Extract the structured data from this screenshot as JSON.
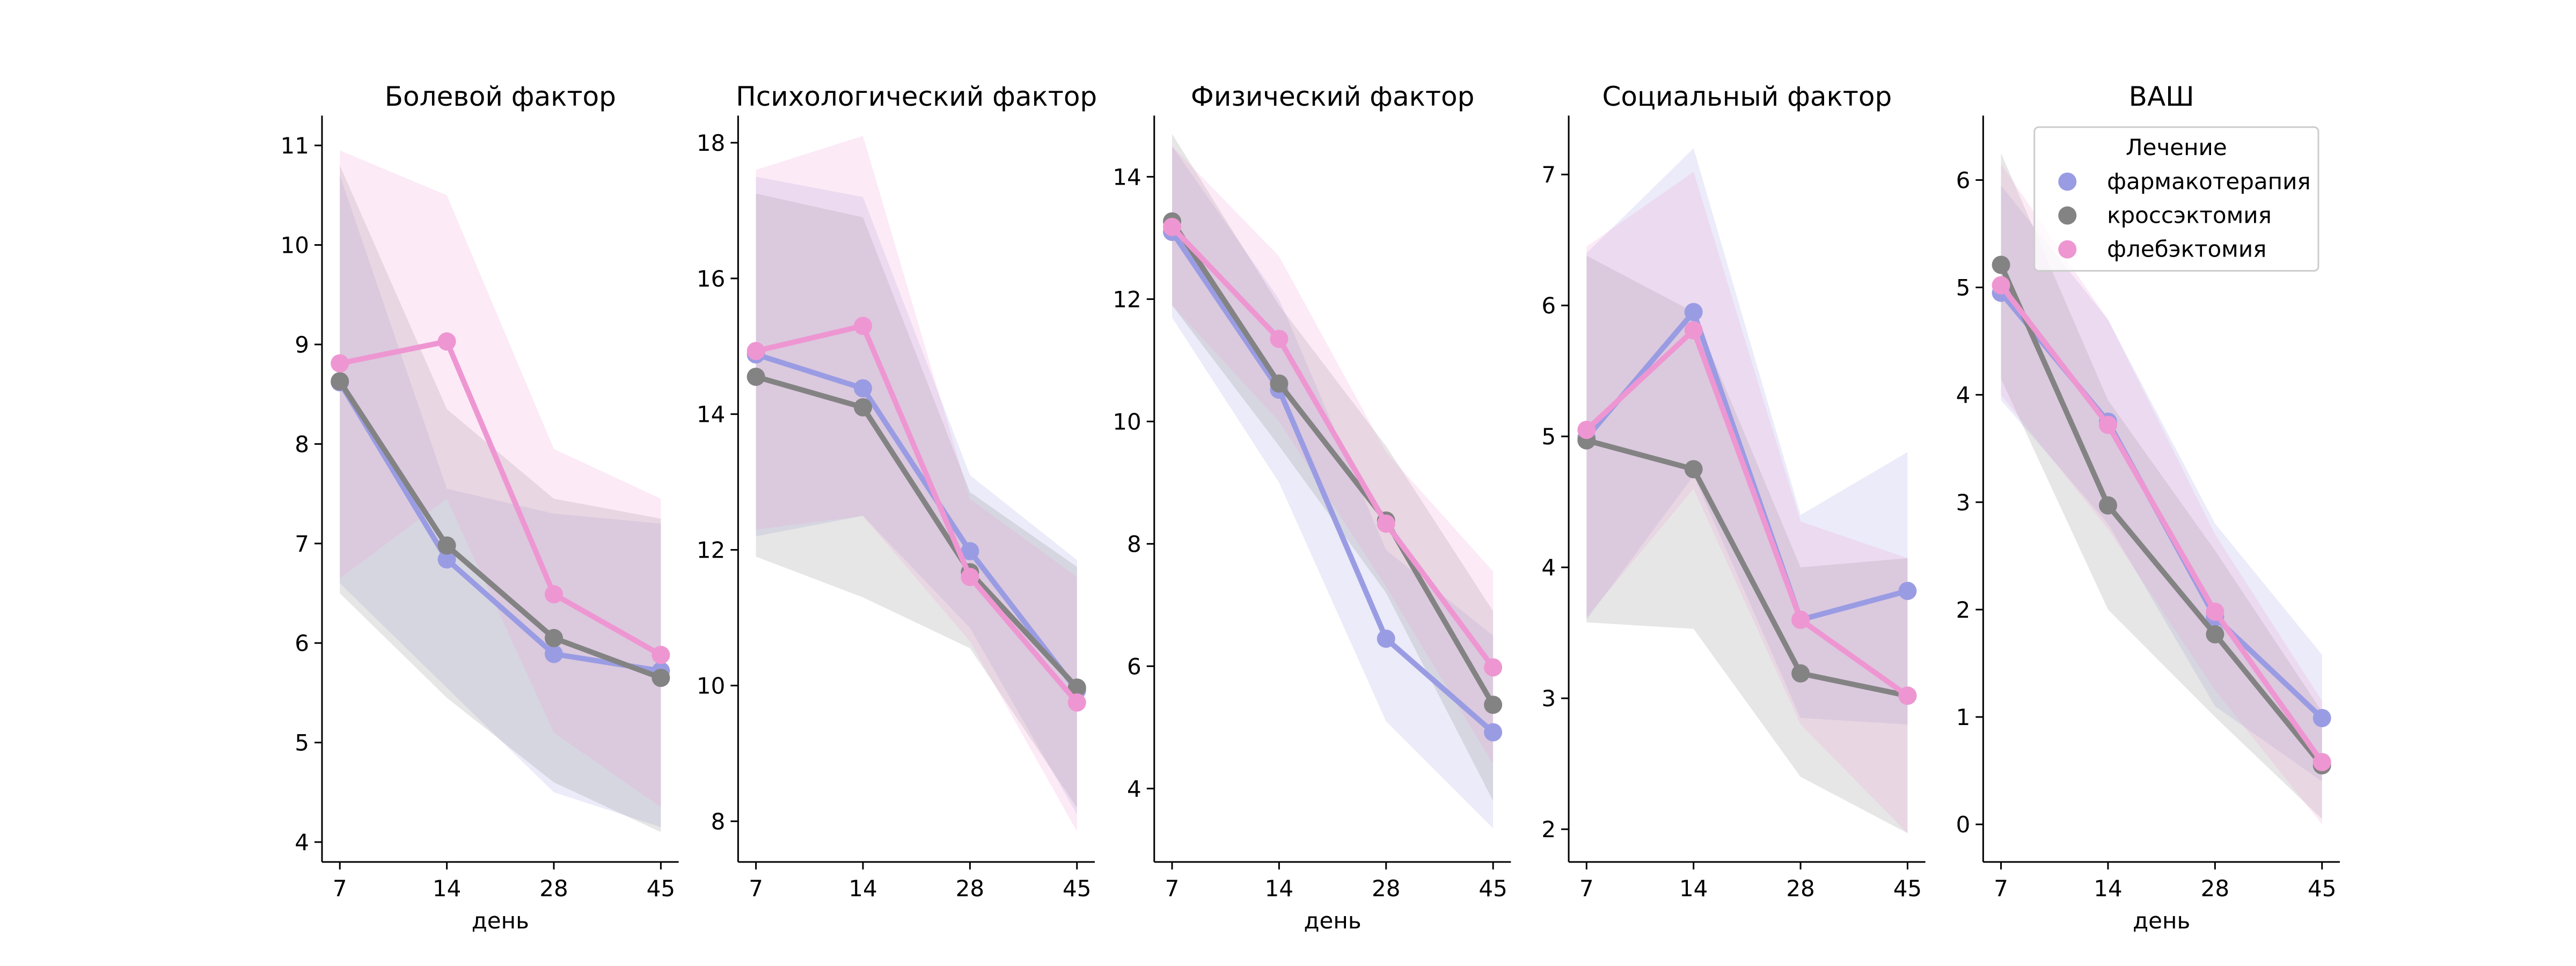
{
  "chart_data": [
    {
      "type": "line",
      "title": "Болевой фактор",
      "xlabel": "день",
      "ylabel": "",
      "categories": [
        "7",
        "14",
        "28",
        "45"
      ],
      "ylim": [
        3.8,
        11.3
      ],
      "yticks": [
        4,
        5,
        6,
        7,
        8,
        9,
        10,
        11
      ],
      "grid": false,
      "series": [
        {
          "name": "фармакотерапия",
          "values": [
            8.62,
            6.84,
            5.89,
            5.72
          ],
          "ci_low": [
            6.6,
            5.55,
            4.5,
            4.15
          ],
          "ci_high": [
            10.7,
            7.55,
            7.3,
            7.2
          ]
        },
        {
          "name": "кроссэктомия",
          "values": [
            8.63,
            6.98,
            6.05,
            5.65
          ],
          "ci_low": [
            6.5,
            5.45,
            4.6,
            4.1
          ],
          "ci_high": [
            10.8,
            8.35,
            7.45,
            7.25
          ]
        },
        {
          "name": "флебэктомия",
          "values": [
            8.81,
            9.03,
            6.49,
            5.88
          ],
          "ci_low": [
            6.65,
            7.45,
            5.1,
            4.35
          ],
          "ci_high": [
            10.95,
            10.5,
            7.95,
            7.45
          ]
        }
      ]
    },
    {
      "type": "line",
      "title": "Психологический фактор",
      "xlabel": "",
      "ylabel": "",
      "categories": [
        "7",
        "14",
        "28",
        "45"
      ],
      "ylim": [
        7.4,
        18.4
      ],
      "yticks": [
        8,
        10,
        12,
        14,
        16,
        18
      ],
      "grid": false,
      "series": [
        {
          "name": "фармакотерапия",
          "values": [
            14.88,
            14.38,
            11.98,
            9.93
          ],
          "ci_low": [
            12.2,
            12.5,
            10.85,
            8.1
          ],
          "ci_high": [
            17.5,
            17.2,
            13.1,
            11.85
          ]
        },
        {
          "name": "кроссэктомия",
          "values": [
            14.55,
            14.1,
            11.67,
            9.97
          ],
          "ci_low": [
            11.9,
            11.3,
            10.55,
            8.2
          ],
          "ci_high": [
            17.25,
            16.9,
            12.85,
            11.75
          ]
        },
        {
          "name": "флебэктомия",
          "values": [
            14.93,
            15.3,
            11.6,
            9.75
          ],
          "ci_low": [
            12.3,
            12.5,
            10.65,
            7.85
          ],
          "ci_high": [
            17.6,
            18.1,
            12.75,
            11.6
          ]
        }
      ]
    },
    {
      "type": "line",
      "title": "Физический фактор",
      "xlabel": "день",
      "ylabel": "",
      "categories": [
        "7",
        "14",
        "28",
        "45"
      ],
      "ylim": [
        2.8,
        15.0
      ],
      "yticks": [
        4,
        6,
        8,
        10,
        12,
        14
      ],
      "grid": false,
      "series": [
        {
          "name": "фармакотерапия",
          "values": [
            13.1,
            10.52,
            6.45,
            4.92
          ],
          "ci_low": [
            11.7,
            9.0,
            5.1,
            3.35
          ],
          "ci_high": [
            14.5,
            12.0,
            7.9,
            6.5
          ]
        },
        {
          "name": "кроссэктомия",
          "values": [
            13.27,
            10.62,
            8.38,
            5.37
          ],
          "ci_low": [
            11.9,
            9.6,
            7.2,
            3.8
          ],
          "ci_high": [
            14.7,
            11.9,
            9.6,
            6.9
          ]
        },
        {
          "name": "флебэктомия",
          "values": [
            13.18,
            11.35,
            8.33,
            5.98
          ],
          "ci_low": [
            11.9,
            10.0,
            7.3,
            4.4
          ],
          "ci_high": [
            14.5,
            12.7,
            9.5,
            7.55
          ]
        }
      ]
    },
    {
      "type": "line",
      "title": "Социальный фактор",
      "xlabel": "",
      "ylabel": "",
      "categories": [
        "7",
        "14",
        "28",
        "45"
      ],
      "ylim": [
        1.75,
        7.45
      ],
      "yticks": [
        2,
        3,
        4,
        5,
        6,
        7
      ],
      "grid": false,
      "series": [
        {
          "name": "фармакотерапия",
          "values": [
            4.99,
            5.95,
            3.6,
            3.82
          ],
          "ci_low": [
            3.6,
            4.7,
            2.85,
            2.8
          ],
          "ci_high": [
            6.4,
            7.2,
            4.4,
            4.88
          ]
        },
        {
          "name": "кроссэктомия",
          "values": [
            4.97,
            4.75,
            3.19,
            3.02
          ],
          "ci_low": [
            3.58,
            3.53,
            2.4,
            1.97
          ],
          "ci_high": [
            6.38,
            5.95,
            4.0,
            4.07
          ]
        },
        {
          "name": "флебэктомия",
          "values": [
            5.05,
            5.81,
            3.6,
            3.02
          ],
          "ci_low": [
            3.62,
            4.6,
            2.8,
            1.97
          ],
          "ci_high": [
            6.45,
            7.02,
            4.35,
            4.07
          ]
        }
      ]
    },
    {
      "type": "line",
      "title": "ВАШ",
      "xlabel": "день",
      "ylabel": "",
      "categories": [
        "7",
        "14",
        "28",
        "45"
      ],
      "ylim": [
        -0.35,
        6.6
      ],
      "yticks": [
        0,
        1,
        2,
        3,
        4,
        5,
        6
      ],
      "grid": false,
      "legend": {
        "title": "Лечение",
        "placement": "upper right"
      },
      "series": [
        {
          "name": "фармакотерапия",
          "values": [
            4.95,
            3.75,
            1.93,
            0.99
          ],
          "ci_low": [
            3.95,
            2.8,
            1.1,
            0.4
          ],
          "ci_high": [
            5.95,
            4.7,
            2.8,
            1.58
          ]
        },
        {
          "name": "кроссэктомия",
          "values": [
            5.21,
            2.97,
            1.77,
            0.55
          ],
          "ci_low": [
            4.15,
            2.0,
            1.0,
            0.05
          ],
          "ci_high": [
            6.25,
            3.95,
            2.55,
            1.05
          ]
        },
        {
          "name": "флебэктомия",
          "values": [
            5.02,
            3.72,
            1.98,
            0.58
          ],
          "ci_low": [
            4.0,
            2.75,
            1.25,
            0.0
          ],
          "ci_high": [
            6.15,
            4.7,
            2.7,
            1.15
          ]
        }
      ]
    }
  ],
  "colors": {
    "фармакотерапия": "#9a9ce3",
    "кроссэктомия": "#838383",
    "флебэктомия": "#ee96d2"
  },
  "legend": {
    "title": "Лечение",
    "items": [
      "фармакотерапия",
      "кроссэктомия",
      "флебэктомия"
    ]
  }
}
